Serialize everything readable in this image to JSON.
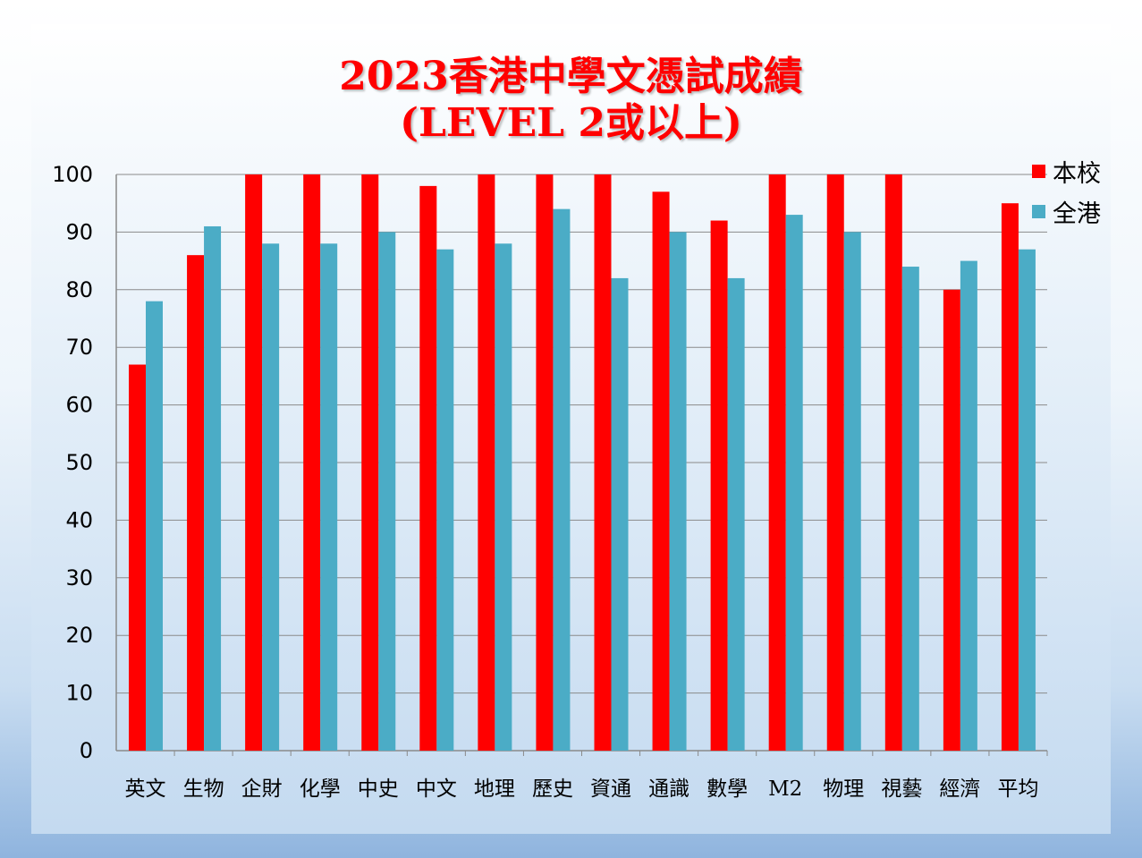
{
  "chart_data": {
    "type": "bar",
    "title_line1": "2023香港中學文憑試成績",
    "title_line2": "(LEVEL 2或以上)",
    "categories": [
      "英文",
      "生物",
      "企財",
      "化學",
      "中史",
      "中文",
      "地理",
      "歷史",
      "資通",
      "通識",
      "數學",
      "M2",
      "物理",
      "視藝",
      "經濟",
      "平均"
    ],
    "series": [
      {
        "name": "本校",
        "color": "#ff0000",
        "values": [
          67,
          86,
          100,
          100,
          100,
          98,
          100,
          100,
          100,
          97,
          92,
          100,
          100,
          100,
          80,
          95
        ]
      },
      {
        "name": "全港",
        "color": "#4bacc6",
        "values": [
          78,
          91,
          88,
          88,
          90,
          87,
          88,
          94,
          82,
          90,
          82,
          93,
          90,
          84,
          85,
          87
        ]
      }
    ],
    "ylim": [
      0,
      100
    ],
    "yticks": [
      0,
      10,
      20,
      30,
      40,
      50,
      60,
      70,
      80,
      90,
      100
    ],
    "grid": true,
    "legend_position": "top-right"
  }
}
